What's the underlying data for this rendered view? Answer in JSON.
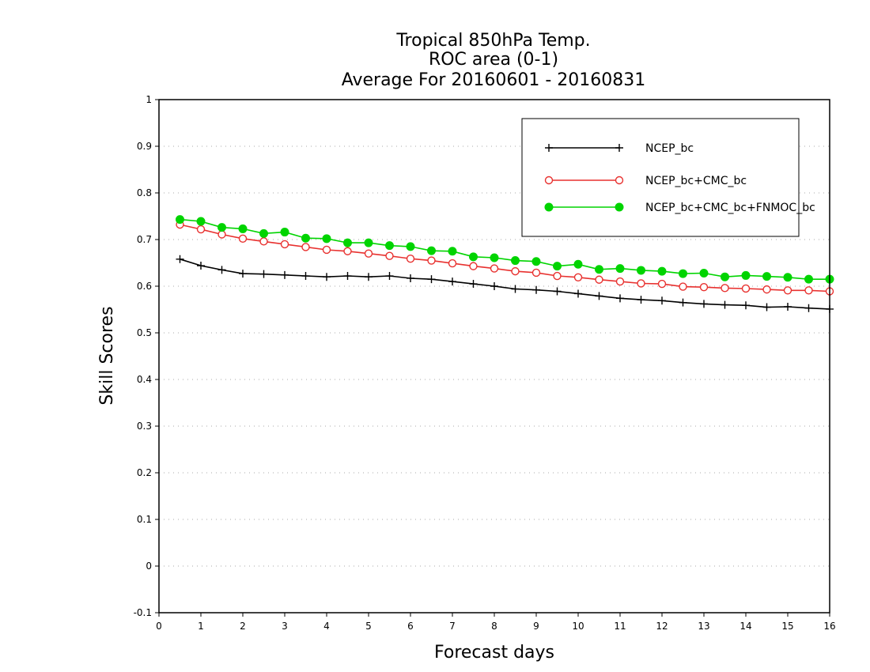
{
  "chart_data": {
    "type": "line",
    "title_lines": [
      "Tropical 850hPa Temp.",
      "ROC area (0-1)",
      "Average For 20160601 - 20160831"
    ],
    "xlabel": "Forecast days",
    "ylabel": "Skill Scores",
    "xlim": [
      0,
      16
    ],
    "ylim": [
      -0.1,
      1
    ],
    "x_ticks": [
      "0",
      "1",
      "2",
      "3",
      "4",
      "5",
      "6",
      "7",
      "8",
      "9",
      "10",
      "11",
      "12",
      "13",
      "14",
      "15",
      "16"
    ],
    "y_ticks": [
      "-0.1",
      "0",
      "0.1",
      "0.2",
      "0.3",
      "0.4",
      "0.5",
      "0.6",
      "0.7",
      "0.8",
      "0.9",
      "1"
    ],
    "grid": "horizontal dotted",
    "legend_position": "top-right",
    "x": [
      0.5,
      1,
      1.5,
      2,
      2.5,
      3,
      3.5,
      4,
      4.5,
      5,
      5.5,
      6,
      6.5,
      7,
      7.5,
      8,
      8.5,
      9,
      9.5,
      10,
      10.5,
      11,
      11.5,
      12,
      12.5,
      13,
      13.5,
      14,
      14.5,
      15,
      15.5,
      16
    ],
    "series": [
      {
        "name": "NCEP_bc",
        "color": "#000000",
        "marker": "plus",
        "values": [
          0.658,
          0.644,
          0.635,
          0.627,
          0.626,
          0.624,
          0.622,
          0.62,
          0.622,
          0.62,
          0.622,
          0.617,
          0.615,
          0.61,
          0.605,
          0.6,
          0.594,
          0.592,
          0.589,
          0.584,
          0.579,
          0.574,
          0.571,
          0.569,
          0.565,
          0.562,
          0.56,
          0.559,
          0.555,
          0.556,
          0.553,
          0.551
        ]
      },
      {
        "name": "NCEP_bc+CMC_bc",
        "color": "#e8312f",
        "marker": "open-circle",
        "values": [
          0.732,
          0.722,
          0.711,
          0.702,
          0.696,
          0.69,
          0.684,
          0.678,
          0.675,
          0.67,
          0.665,
          0.659,
          0.655,
          0.649,
          0.643,
          0.638,
          0.632,
          0.629,
          0.622,
          0.619,
          0.614,
          0.61,
          0.606,
          0.605,
          0.599,
          0.598,
          0.596,
          0.595,
          0.593,
          0.591,
          0.591,
          0.589
        ]
      },
      {
        "name": "NCEP_bc+CMC_bc+FNMOC_bc",
        "color": "#00d400",
        "marker": "filled-circle",
        "values": [
          0.743,
          0.739,
          0.726,
          0.723,
          0.713,
          0.716,
          0.703,
          0.702,
          0.693,
          0.693,
          0.687,
          0.685,
          0.676,
          0.675,
          0.663,
          0.661,
          0.655,
          0.653,
          0.643,
          0.647,
          0.636,
          0.638,
          0.634,
          0.632,
          0.627,
          0.628,
          0.62,
          0.623,
          0.621,
          0.619,
          0.615,
          0.615
        ]
      }
    ]
  }
}
